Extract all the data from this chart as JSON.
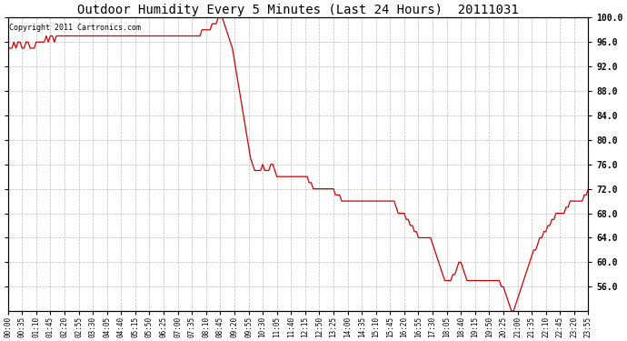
{
  "title": "Outdoor Humidity Every 5 Minutes (Last 24 Hours)  20111031",
  "copyright_text": "Copyright 2011 Cartronics.com",
  "line_color": "#cc0000",
  "background_color": "#ffffff",
  "plot_background": "#ffffff",
  "grid_color": "#aaaaaa",
  "ylim": [
    52.0,
    100.0
  ],
  "yticks": [
    56.0,
    60.0,
    64.0,
    68.0,
    72.0,
    76.0,
    80.0,
    84.0,
    88.0,
    92.0,
    96.0,
    100.0
  ],
  "humidity_values": [
    95,
    95,
    95,
    96,
    95,
    96,
    96,
    95,
    95,
    96,
    96,
    95,
    95,
    95,
    96,
    96,
    96,
    96,
    96,
    97,
    96,
    97,
    97,
    96,
    97,
    97,
    97,
    97,
    97,
    97,
    97,
    97,
    97,
    97,
    97,
    97,
    97,
    97,
    97,
    97,
    97,
    97,
    97,
    97,
    97,
    97,
    97,
    97,
    97,
    97,
    97,
    97,
    97,
    97,
    97,
    97,
    97,
    97,
    97,
    97,
    97,
    97,
    97,
    97,
    97,
    97,
    97,
    97,
    97,
    97,
    97,
    97,
    97,
    97,
    97,
    97,
    97,
    97,
    97,
    97,
    97,
    97,
    97,
    97,
    97,
    97,
    97,
    97,
    97,
    97,
    97,
    97,
    97,
    97,
    97,
    97,
    98,
    98,
    98,
    98,
    98,
    99,
    99,
    99,
    100,
    100,
    100,
    99,
    98,
    97,
    96,
    95,
    93,
    91,
    89,
    87,
    85,
    83,
    81,
    79,
    77,
    76,
    75,
    75,
    75,
    75,
    76,
    75,
    75,
    75,
    76,
    76,
    75,
    74,
    74,
    74,
    74,
    74,
    74,
    74,
    74,
    74,
    74,
    74,
    74,
    74,
    74,
    74,
    74,
    73,
    73,
    72,
    72,
    72,
    72,
    72,
    72,
    72,
    72,
    72,
    72,
    72,
    71,
    71,
    71,
    70,
    70,
    70,
    70,
    70,
    70,
    70,
    70,
    70,
    70,
    70,
    70,
    70,
    70,
    70,
    70,
    70,
    70,
    70,
    70,
    70,
    70,
    70,
    70,
    70,
    70,
    70,
    69,
    68,
    68,
    68,
    68,
    67,
    67,
    66,
    66,
    65,
    65,
    64,
    64,
    64,
    64,
    64,
    64,
    64,
    63,
    62,
    61,
    60,
    59,
    58,
    57,
    57,
    57,
    57,
    58,
    58,
    59,
    60,
    60,
    59,
    58,
    57,
    57,
    57,
    57,
    57,
    57,
    57,
    57,
    57,
    57,
    57,
    57,
    57,
    57,
    57,
    57,
    57,
    56,
    56,
    55,
    54,
    53,
    52,
    52,
    53,
    54,
    55,
    56,
    57,
    58,
    59,
    60,
    61,
    62,
    62,
    63,
    64,
    64,
    65,
    65,
    66,
    66,
    67,
    67,
    68,
    68,
    68,
    68,
    68,
    69,
    69,
    70,
    70,
    70,
    70,
    70,
    70,
    70,
    71,
    71,
    72
  ]
}
